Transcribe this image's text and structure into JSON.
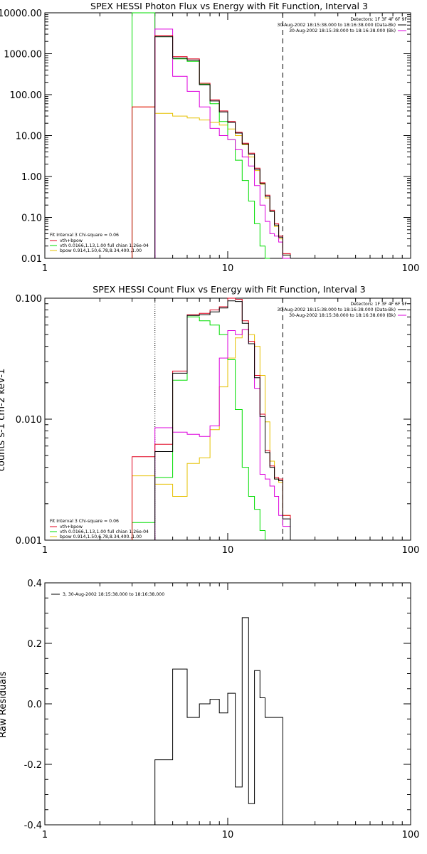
{
  "colors": {
    "total": "#e0001e",
    "total_dark": "#000000",
    "vth": "#00dd00",
    "bpow": "#e6c000",
    "data": "#dd00dd",
    "axis": "#000000"
  },
  "chart_data": [
    {
      "type": "line",
      "step": true,
      "title": "SPEX HESSI Photon Flux vs Energy with Fit Function, Interval 3",
      "xscale": "log",
      "yscale": "log",
      "xlim": [
        1,
        100
      ],
      "ylim": [
        0.01,
        10000
      ],
      "grid": false,
      "legend": "bottom-left",
      "x_tick_labels": [
        "1",
        "10",
        "100"
      ],
      "x_ticks": [
        1,
        10,
        100
      ],
      "y_tick_labels": [
        "0.01",
        "0.10",
        "1.00",
        "10.00",
        "100.00",
        "1000.00",
        "10000.00"
      ],
      "y_ticks": [
        0.01,
        0.1,
        1,
        10,
        100,
        1000,
        10000
      ],
      "header_lines": [
        "Detectors: 1F 3F 4F 6F 9F",
        "30-Aug-2002 18:15:38.000 to 18:16:38.000 (Data-Bk)",
        "30-Aug-2002 18:15:38.000 to 18:16:38.000 (Bk)"
      ],
      "legend_title": "Fit Interval 3   Chi-square = 0.06",
      "legend_entries": [
        "vth+bpow",
        "vth 0.0166,1.13,1.00  full chian 1.26e-04",
        "bpow 0.914,1.50,6.78,8.34,400.,1.00"
      ],
      "edges": [
        3,
        4,
        5,
        6,
        7,
        8,
        9,
        10,
        11,
        12,
        13,
        14,
        15,
        16,
        17,
        18,
        19,
        20,
        22
      ],
      "vlines": [
        {
          "x": 4,
          "style": "solid",
          "color": "data"
        },
        {
          "x": 20,
          "style": "dashed",
          "color": "axis"
        }
      ],
      "series": [
        {
          "color": "bpow",
          "values": [
            50,
            35,
            30,
            27,
            24,
            21,
            18,
            14.5,
            10,
            6,
            3,
            1.4,
            0.65,
            0.3,
            0.14,
            0.06,
            0.03,
            0.012
          ]
        },
        {
          "color": "vth",
          "values": [
            10000,
            2600,
            750,
            650,
            180,
            60,
            22,
            8,
            2.5,
            0.8,
            0.25,
            0.07,
            0.02,
            0.006,
            null,
            null,
            null,
            null
          ]
        },
        {
          "color": "data",
          "values": [
            null,
            4000,
            280,
            120,
            50,
            15,
            10,
            8,
            4.5,
            3,
            1.8,
            0.6,
            0.2,
            0.08,
            0.04,
            0.035,
            0.025,
            0.008
          ]
        },
        {
          "color": "total",
          "values": [
            50,
            2800,
            850,
            750,
            190,
            75,
            40,
            22,
            12,
            6.5,
            3.7,
            1.6,
            0.7,
            0.35,
            0.15,
            0.07,
            0.035,
            0.013
          ]
        },
        {
          "color": "total_dark",
          "values": [
            null,
            2600,
            780,
            700,
            175,
            70,
            38,
            21,
            11.5,
            6.2,
            3.5,
            1.5,
            0.67,
            0.33,
            0.14,
            0.065,
            0.033,
            0.012
          ]
        }
      ]
    },
    {
      "type": "line",
      "step": true,
      "title": "SPEX HESSI Count Flux vs Energy with Fit Function, Interval 3",
      "ylabel": "counts s-1 cm-2 keV-1",
      "xscale": "log",
      "yscale": "log",
      "xlim": [
        1,
        100
      ],
      "ylim": [
        0.001,
        0.1
      ],
      "grid": false,
      "legend": "bottom-left",
      "x_tick_labels": [
        "1",
        "10",
        "100"
      ],
      "x_ticks": [
        1,
        10,
        100
      ],
      "y_tick_labels": [
        "0.001",
        "0.010",
        "0.100"
      ],
      "y_ticks": [
        0.001,
        0.01,
        0.1
      ],
      "header_lines": [
        "Detectors: 1F 3F 4F 6F 9F",
        "30-Aug-2002 18:15:38.000 to 18:16:38.000 (Data-Bk)",
        "30-Aug-2002 18:15:38.000 to 18:16:38.000 (Bk)"
      ],
      "legend_title": "Fit Interval 3   Chi-square = 0.06",
      "legend_entries": [
        "vth+bpow",
        "vth 0.0166,1.13,1.00  full chian 1.26e-04",
        "bpow 0.914,1.50,6.78,8.34,400.,1.00"
      ],
      "edges": [
        3,
        4,
        5,
        6,
        7,
        8,
        9,
        10,
        11,
        12,
        13,
        14,
        15,
        16,
        17,
        18,
        19,
        20,
        22
      ],
      "vlines": [
        {
          "x": 4,
          "style": "dotted",
          "color": "axis"
        },
        {
          "x": 20,
          "style": "dashed",
          "color": "axis"
        }
      ],
      "series": [
        {
          "color": "bpow",
          "values": [
            0.0034,
            0.0029,
            0.0023,
            0.0043,
            0.0048,
            0.0082,
            0.0185,
            0.032,
            0.047,
            0.055,
            0.05,
            0.04,
            0.023,
            0.0095,
            0.0045,
            0.0032,
            0.003,
            0.0016
          ]
        },
        {
          "color": "vth",
          "values": [
            0.0014,
            0.0033,
            0.021,
            0.07,
            0.065,
            0.06,
            0.05,
            0.031,
            0.012,
            0.004,
            0.0023,
            0.0018,
            0.0012,
            null,
            null,
            null,
            null,
            null
          ]
        },
        {
          "color": "data",
          "values": [
            null,
            0.0085,
            0.0078,
            0.0075,
            0.0072,
            0.0088,
            0.032,
            0.054,
            0.05,
            0.055,
            0.042,
            0.018,
            0.0035,
            0.0032,
            0.0028,
            0.0023,
            0.0016,
            0.0013
          ]
        },
        {
          "color": "total",
          "values": [
            0.0049,
            0.0062,
            0.025,
            0.073,
            0.075,
            0.08,
            0.085,
            0.1,
            0.098,
            0.065,
            0.044,
            0.023,
            0.011,
            0.0055,
            0.0041,
            0.0033,
            0.0032,
            0.0016
          ]
        },
        {
          "color": "total_dark",
          "values": [
            null,
            0.0054,
            0.024,
            0.072,
            0.073,
            0.077,
            0.083,
            0.095,
            0.094,
            0.062,
            0.042,
            0.022,
            0.0105,
            0.0053,
            0.004,
            0.0032,
            0.0031,
            0.0015
          ]
        }
      ]
    },
    {
      "type": "line",
      "step": true,
      "title": "",
      "ylabel": "Raw Residuals",
      "xscale": "log",
      "yscale": "linear",
      "xlim": [
        1,
        100
      ],
      "ylim": [
        -0.4,
        0.4
      ],
      "grid": false,
      "legend": "top-left",
      "x_tick_labels": [
        "1",
        "10",
        "100"
      ],
      "x_ticks": [
        1,
        10,
        100
      ],
      "y_tick_labels": [
        "-0.4",
        "-0.2",
        "0.0",
        "0.2",
        "0.4"
      ],
      "y_ticks": [
        -0.4,
        -0.2,
        0,
        0.2,
        0.4
      ],
      "legend_entries": [
        "3, 30-Aug-2002 18:15:38.000 to 18:16:38.000"
      ],
      "edges": [
        4,
        5,
        6,
        7,
        8,
        9,
        10,
        11,
        12,
        13,
        14,
        15,
        16,
        17,
        18,
        19,
        20
      ],
      "start_from_bottom": true,
      "vlines": [],
      "series": [
        {
          "color": "axis",
          "values": [
            -0.185,
            0.115,
            -0.045,
            0.0,
            0.015,
            -0.03,
            0.035,
            -0.275,
            0.285,
            -0.33,
            0.11,
            0.02,
            -0.045,
            -0.045,
            -0.045,
            -0.045
          ]
        }
      ]
    }
  ]
}
